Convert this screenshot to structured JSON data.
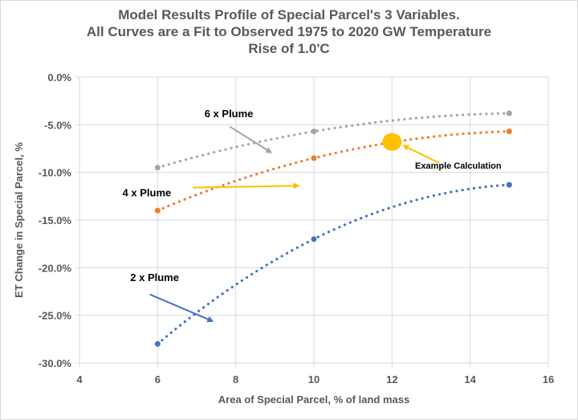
{
  "chart_data": {
    "type": "line",
    "title_lines": [
      "Model Results Profile of Special Parcel's 3 Variables.",
      "All Curves are a Fit to Observed 1975 to 2020 GW Temperature",
      "Rise of 1.0'C"
    ],
    "xlabel": "Area of Special Parcel, % of land mass",
    "ylabel": "ET Change in Special Parcel, %",
    "xlim": [
      4,
      16
    ],
    "ylim": [
      -30,
      0
    ],
    "grid": true,
    "x_ticks": [
      4,
      6,
      8,
      10,
      12,
      14,
      16
    ],
    "x_tick_labels": [
      "4",
      "6",
      "8",
      "10",
      "12",
      "14",
      "16"
    ],
    "y_ticks": [
      0,
      -5,
      -10,
      -15,
      -20,
      -25,
      -30
    ],
    "y_tick_labels": [
      "0.0%",
      "-5.0%",
      "-10.0%",
      "-15.0%",
      "-20.0%",
      "-25.0%",
      "-30.0%"
    ],
    "series": [
      {
        "name": "6 x Plume",
        "color": "#a5a5a5",
        "x": [
          6,
          10,
          15
        ],
        "values": [
          -9.5,
          -5.7,
          -3.8
        ],
        "label_at": [
          7.2,
          -4.2
        ],
        "arrow_from": [
          7.85,
          -5.2
        ],
        "arrow_to": [
          8.9,
          -7.9
        ]
      },
      {
        "name": "4 x Plume",
        "color": "#ed7d31",
        "x": [
          6,
          10,
          15
        ],
        "values": [
          -14.0,
          -8.5,
          -5.7
        ],
        "label_at": [
          5.1,
          -12.5
        ],
        "arrow_from": [
          6.9,
          -11.6
        ],
        "arrow_to": [
          9.6,
          -11.4
        ],
        "arrow_color": "#ffc000"
      },
      {
        "name": "2 x Plume",
        "color": "#4472c4",
        "x": [
          6,
          10,
          15
        ],
        "values": [
          -28.0,
          -17.0,
          -11.3
        ],
        "label_at": [
          5.3,
          -21.4
        ],
        "arrow_from": [
          5.8,
          -22.8
        ],
        "arrow_to": [
          7.4,
          -25.6
        ]
      }
    ],
    "annotations": [
      {
        "text": "Example Calculation",
        "point": [
          12,
          -6.8
        ],
        "color": "#ffc000",
        "label_at": [
          14.8,
          -9.6
        ],
        "arrow_from": [
          13.2,
          -9.0
        ],
        "arrow_to": [
          12.3,
          -7.2
        ]
      }
    ]
  }
}
